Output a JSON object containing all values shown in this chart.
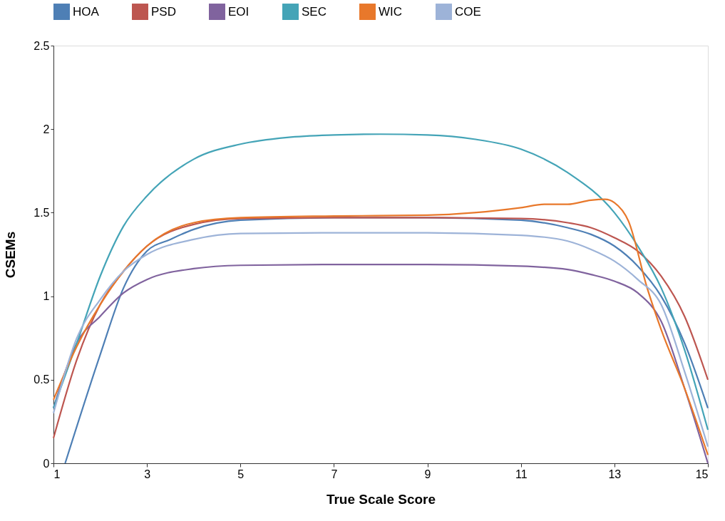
{
  "chart_data": {
    "type": "line",
    "xlabel": "True Scale Score",
    "ylabel": "CSEMs",
    "xlim": [
      1,
      15
    ],
    "xticks": [
      1,
      3,
      5,
      7,
      9,
      11,
      13,
      15
    ],
    "ylim": [
      0,
      2.5
    ],
    "yticks": [
      0,
      0.5,
      1,
      1.5,
      2,
      2.5
    ],
    "grid": false,
    "legend": "top",
    "marker": "none",
    "line_style": "solid",
    "series": [
      {
        "name": "HOA",
        "color": "#4e7fb5",
        "x": [
          1.25,
          2,
          2.5,
          3,
          3.5,
          4,
          5,
          7,
          9,
          11,
          12,
          12.5,
          13,
          13.5,
          14,
          14.5,
          15
        ],
        "values": [
          0,
          0.65,
          1.05,
          1.27,
          1.34,
          1.4,
          1.455,
          1.47,
          1.47,
          1.455,
          1.41,
          1.37,
          1.3,
          1.18,
          1.0,
          0.72,
          0.33
        ]
      },
      {
        "name": "PSD",
        "color": "#bd5650",
        "x": [
          1,
          1.5,
          2,
          2.5,
          3,
          4,
          5,
          7,
          9,
          11,
          12,
          12.5,
          13,
          13.5,
          14,
          14.5,
          15
        ],
        "values": [
          0.15,
          0.62,
          0.95,
          1.15,
          1.3,
          1.43,
          1.465,
          1.47,
          1.47,
          1.465,
          1.44,
          1.41,
          1.35,
          1.27,
          1.12,
          0.88,
          0.5
        ]
      },
      {
        "name": "EOI",
        "color": "#80639e",
        "x": [
          1,
          1.5,
          2,
          2.5,
          3,
          4,
          5,
          7,
          9,
          11,
          12,
          12.5,
          13,
          13.5,
          14,
          14.5,
          15
        ],
        "values": [
          0.33,
          0.72,
          0.88,
          1.02,
          1.1,
          1.165,
          1.185,
          1.19,
          1.19,
          1.18,
          1.16,
          1.13,
          1.09,
          1.02,
          0.85,
          0.45,
          0
        ]
      },
      {
        "name": "SEC",
        "color": "#44a4b7",
        "x": [
          1,
          1.5,
          2,
          2.5,
          3,
          4,
          5,
          6,
          7,
          8,
          9,
          10,
          11,
          12,
          13,
          13.5,
          14,
          14.5,
          15
        ],
        "values": [
          0.33,
          0.72,
          1.12,
          1.42,
          1.6,
          1.82,
          1.91,
          1.95,
          1.965,
          1.97,
          1.965,
          1.94,
          1.88,
          1.74,
          1.5,
          1.3,
          1.05,
          0.68,
          0.2
        ]
      },
      {
        "name": "WIC",
        "color": "#e8782b",
        "x": [
          1,
          1.5,
          2,
          2.5,
          3,
          4,
          5,
          7,
          9,
          10,
          11,
          11.5,
          12,
          12.5,
          12.8,
          13,
          13.3,
          13.7,
          14,
          14.5,
          15
        ],
        "values": [
          0.38,
          0.7,
          0.95,
          1.15,
          1.3,
          1.44,
          1.47,
          1.48,
          1.485,
          1.5,
          1.53,
          1.55,
          1.55,
          1.575,
          1.58,
          1.56,
          1.45,
          1.05,
          0.8,
          0.45,
          0.05
        ]
      },
      {
        "name": "COE",
        "color": "#9db3d8",
        "x": [
          1,
          1.5,
          2,
          2.5,
          3,
          4,
          5,
          7,
          9,
          11,
          12,
          12.5,
          13,
          13.5,
          14,
          14.5,
          15
        ],
        "values": [
          0.3,
          0.75,
          0.98,
          1.15,
          1.25,
          1.34,
          1.375,
          1.38,
          1.38,
          1.365,
          1.33,
          1.28,
          1.21,
          1.1,
          0.95,
          0.55,
          0.1
        ]
      }
    ]
  }
}
